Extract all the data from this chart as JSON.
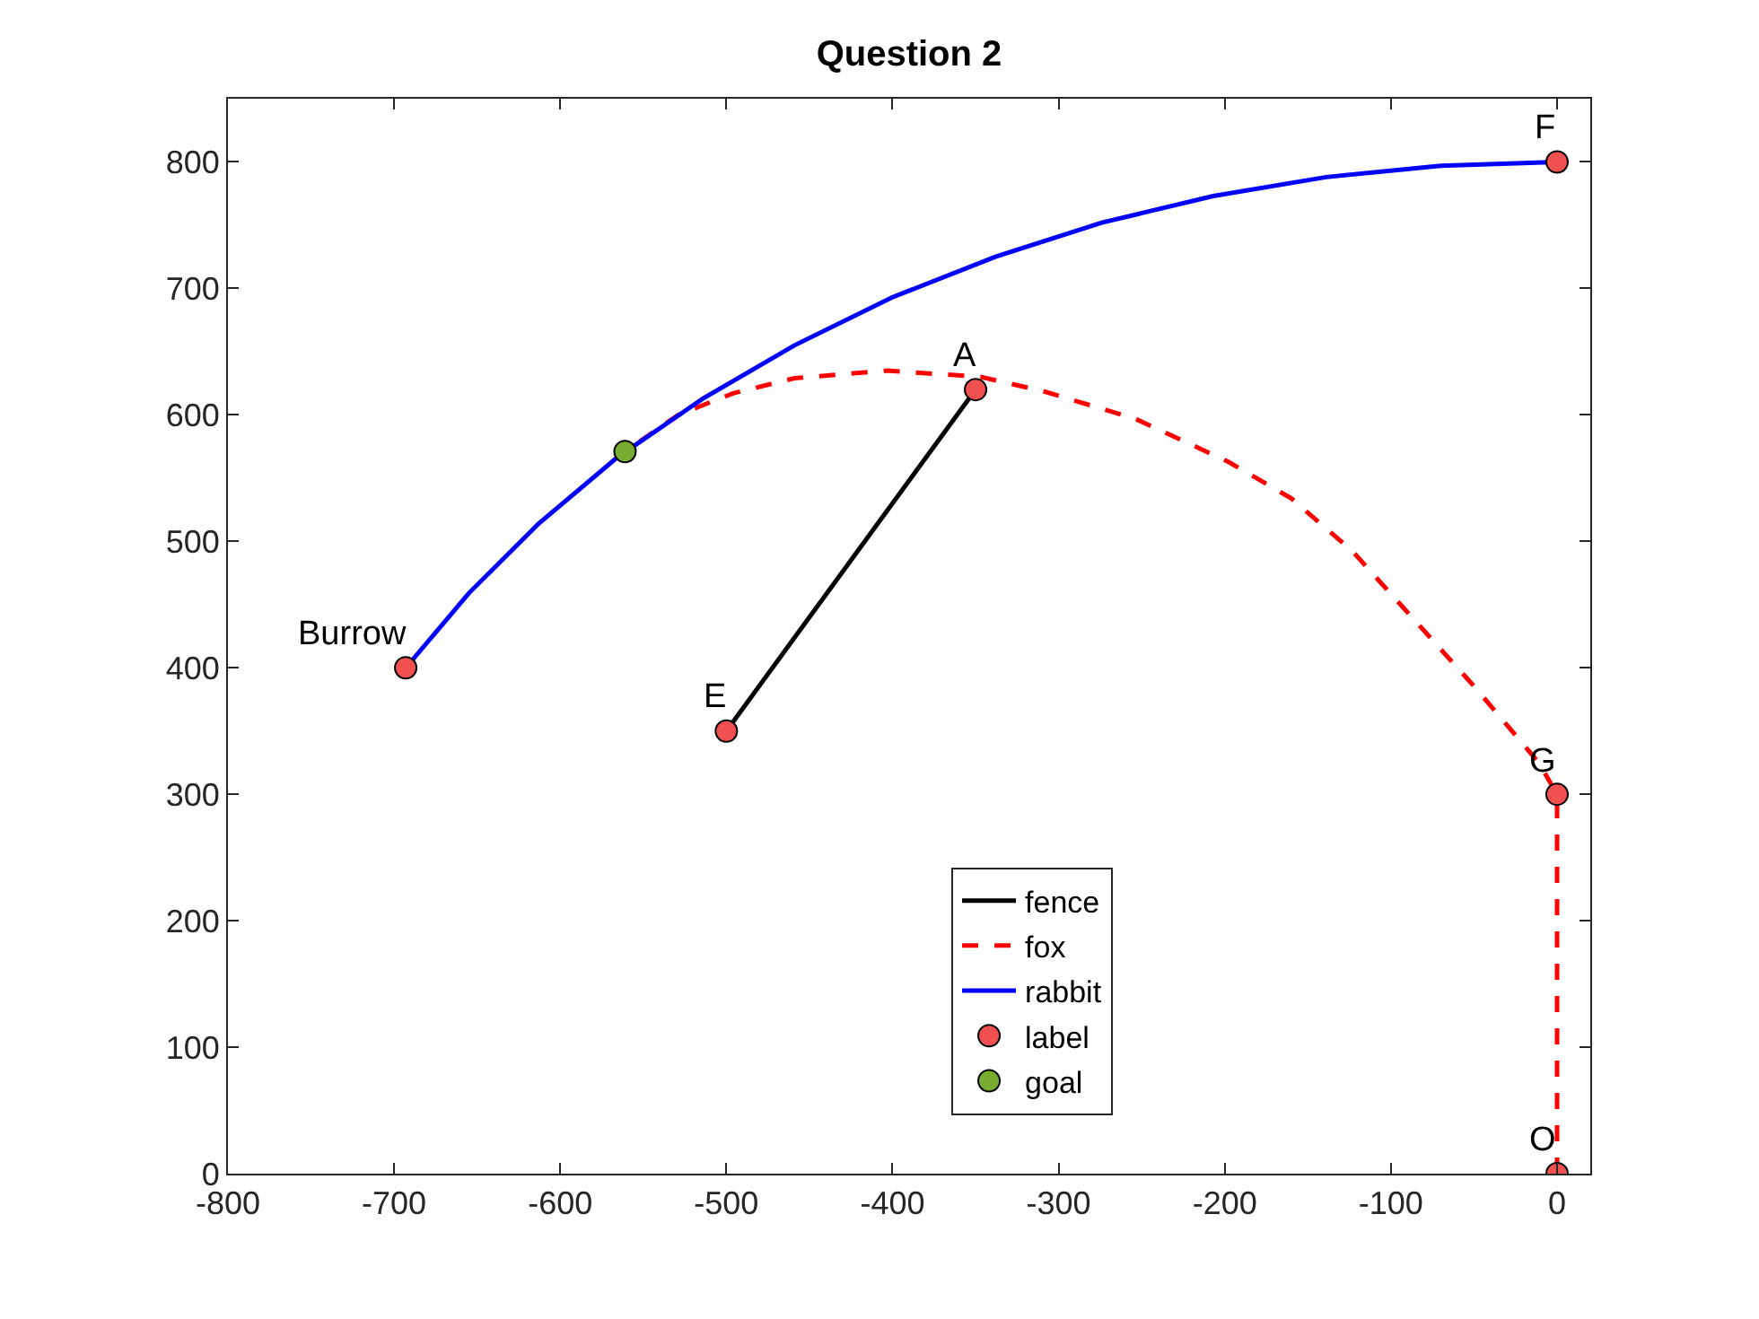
{
  "chart_data": {
    "type": "line",
    "title": "Question 2",
    "xlim": [
      -800,
      20
    ],
    "ylim": [
      0,
      850
    ],
    "xticks": [
      -800,
      -700,
      -600,
      -500,
      -400,
      -300,
      -200,
      -100,
      0
    ],
    "yticks": [
      0,
      100,
      200,
      300,
      400,
      500,
      600,
      700,
      800
    ],
    "grid": false,
    "legend": "bottom",
    "series": [
      {
        "name": "fence",
        "color": "#000000",
        "line_style": "solid",
        "marker": "none",
        "x": [
          -500,
          -350
        ],
        "values": [
          350,
          620
        ]
      },
      {
        "name": "fox",
        "color": "#ff0000",
        "line_style": "dashed",
        "marker": "none",
        "x": [
          0,
          0,
          -11,
          -49,
          -86,
          -123,
          -160,
          -198,
          -254,
          -310,
          -347,
          -403,
          -459,
          -496,
          -529,
          -561
        ],
        "values": [
          0,
          300,
          325,
          384,
          438,
          492,
          534,
          563,
          597,
          619,
          630,
          635,
          629,
          617,
          600,
          571
        ]
      },
      {
        "name": "rabbit",
        "color": "#0000ff",
        "line_style": "solid",
        "marker": "none",
        "x": [
          -693,
          -655,
          -613,
          -566,
          -514,
          -459,
          -400,
          -338,
          -274,
          -207,
          -139,
          -70,
          0
        ],
        "values": [
          400,
          459,
          514,
          566,
          613,
          655,
          693,
          725,
          752,
          773,
          788,
          797,
          800
        ]
      },
      {
        "name": "label",
        "type": "scatter",
        "color": "#f05050",
        "marker": "circle",
        "x": [
          -693,
          -500,
          -350,
          0,
          0,
          0
        ],
        "values": [
          400,
          350,
          620,
          800,
          300,
          0
        ]
      },
      {
        "name": "goal",
        "type": "scatter",
        "color": "#77ac30",
        "marker": "circle",
        "x": [
          -561
        ],
        "values": [
          571
        ]
      }
    ],
    "annotations": [
      {
        "text": "Burrow",
        "x": -693,
        "y": 400
      },
      {
        "text": "E",
        "x": -500,
        "y": 350
      },
      {
        "text": "A",
        "x": -350,
        "y": 620
      },
      {
        "text": "F",
        "x": 0,
        "y": 800
      },
      {
        "text": "G",
        "x": 0,
        "y": 300
      },
      {
        "text": "O",
        "x": 0,
        "y": 0
      }
    ]
  }
}
